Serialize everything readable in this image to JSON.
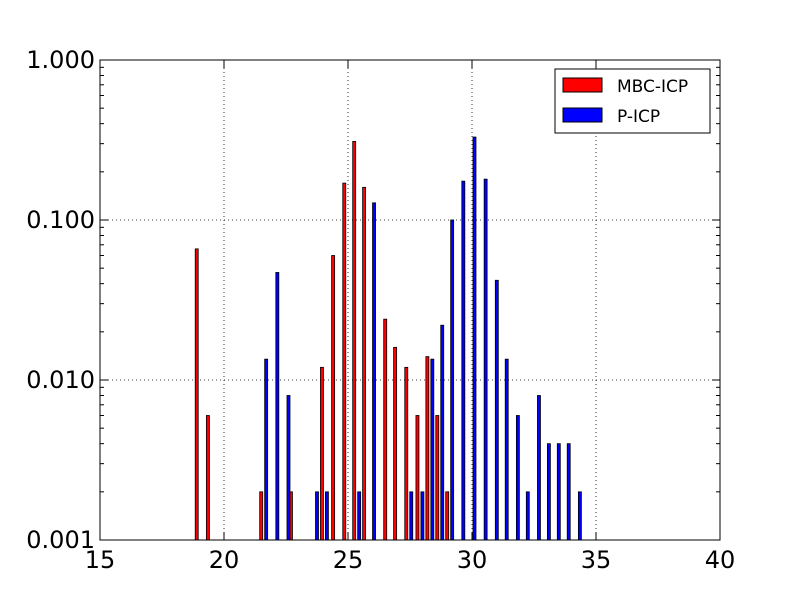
{
  "chart_data": {
    "type": "bar",
    "scale": {
      "x": "linear",
      "y": "log"
    },
    "xlim": [
      15,
      40
    ],
    "ylim": [
      0.001,
      1.0
    ],
    "xticks": [
      15,
      20,
      25,
      30,
      35,
      40
    ],
    "xtick_labels": [
      "15",
      "20",
      "25",
      "30",
      "35",
      "40"
    ],
    "yticks": [
      0.001,
      0.01,
      0.1,
      1.0
    ],
    "ytick_labels": [
      "0.001",
      "0.010",
      "0.100",
      "1.000"
    ],
    "grid": true,
    "legend": "top-right",
    "series": [
      {
        "name": "MBC-ICP",
        "color": "#ff0000",
        "x": [
          18.9,
          19.35,
          21.5,
          22.7,
          23.95,
          24.4,
          24.85,
          25.25,
          25.65,
          26.5,
          26.9,
          27.35,
          27.8,
          28.2,
          28.6,
          29.0
        ],
        "values": [
          0.066,
          0.006,
          0.002,
          0.002,
          0.012,
          0.06,
          0.17,
          0.31,
          0.16,
          0.024,
          0.016,
          0.012,
          0.006,
          0.014,
          0.006,
          0.002
        ]
      },
      {
        "name": "P-ICP",
        "color": "#0000ff",
        "x": [
          21.7,
          22.15,
          22.6,
          23.75,
          24.15,
          25.45,
          26.05,
          27.55,
          28.0,
          28.4,
          28.8,
          29.2,
          29.65,
          30.1,
          30.55,
          31.0,
          31.4,
          31.85,
          32.25,
          32.7,
          33.1,
          33.5,
          33.9,
          34.35
        ],
        "values": [
          0.0135,
          0.047,
          0.008,
          0.002,
          0.002,
          0.002,
          0.128,
          0.002,
          0.002,
          0.0135,
          0.022,
          0.1,
          0.175,
          0.33,
          0.18,
          0.042,
          0.0135,
          0.006,
          0.002,
          0.008,
          0.004,
          0.004,
          0.004,
          0.002
        ]
      }
    ]
  }
}
